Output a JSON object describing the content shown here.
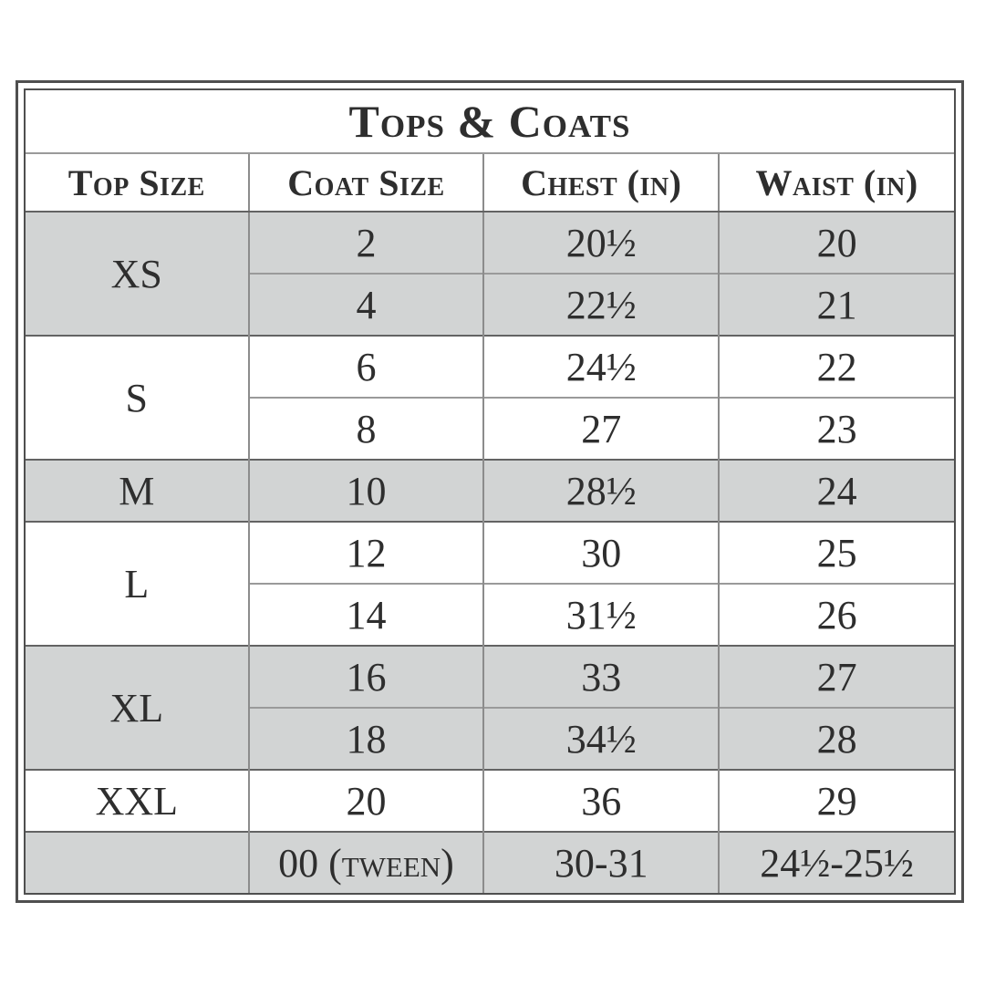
{
  "title": "Tops & Coats",
  "columns": [
    "Top Size",
    "Coat Size",
    "Chest (in)",
    "Waist (in)"
  ],
  "colors": {
    "shaded_row": "#d2d4d4",
    "frame_border": "#4f4f4f",
    "group_separator": "#636363",
    "subrow_separator": "#9a9a9a",
    "text": "#2e2e2e"
  },
  "table": {
    "groups": [
      {
        "top_size": "XS",
        "shaded": true,
        "rows": [
          [
            "2",
            "20½",
            "20"
          ],
          [
            "4",
            "22½",
            "21"
          ]
        ]
      },
      {
        "top_size": "S",
        "shaded": false,
        "rows": [
          [
            "6",
            "24½",
            "22"
          ],
          [
            "8",
            "27",
            "23"
          ]
        ]
      },
      {
        "top_size": "M",
        "shaded": true,
        "rows": [
          [
            "10",
            "28½",
            "24"
          ]
        ]
      },
      {
        "top_size": "L",
        "shaded": false,
        "rows": [
          [
            "12",
            "30",
            "25"
          ],
          [
            "14",
            "31½",
            "26"
          ]
        ]
      },
      {
        "top_size": "XL",
        "shaded": true,
        "rows": [
          [
            "16",
            "33",
            "27"
          ],
          [
            "18",
            "34½",
            "28"
          ]
        ]
      },
      {
        "top_size": "XXL",
        "shaded": false,
        "rows": [
          [
            "20",
            "36",
            "29"
          ]
        ]
      },
      {
        "top_size": "",
        "shaded": true,
        "rows": [
          [
            "00 (tween)",
            "30-31",
            "24½-25½"
          ]
        ]
      }
    ]
  }
}
